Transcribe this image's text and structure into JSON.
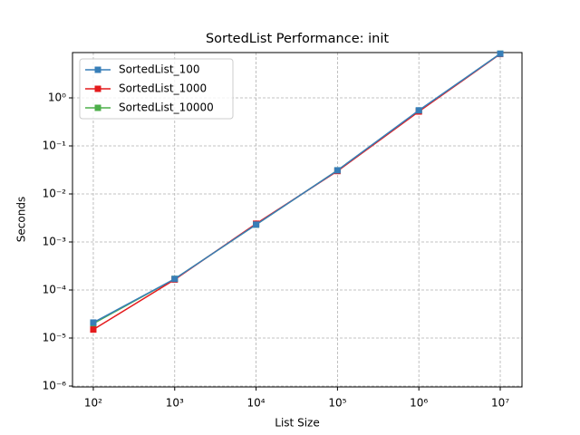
{
  "chart_data": {
    "type": "line",
    "title": "SortedList Performance: init",
    "xlabel": "List Size",
    "ylabel": "Seconds",
    "x": [
      100,
      1000,
      10000,
      100000,
      1000000,
      10000000
    ],
    "series": [
      {
        "name": "SortedList_100",
        "color": "#377eb8",
        "values": [
          2.1e-05,
          0.00017,
          0.0023,
          0.031,
          0.55,
          8.3
        ]
      },
      {
        "name": "SortedList_1000",
        "color": "#e41a1c",
        "values": [
          1.5e-05,
          0.000165,
          0.0024,
          0.03,
          0.52,
          8.2
        ]
      },
      {
        "name": "SortedList_10000",
        "color": "#4daf4a",
        "values": [
          2e-05,
          0.00017,
          0.0023,
          0.031,
          0.54,
          8.3
        ]
      }
    ],
    "xscale": "log",
    "yscale": "log",
    "xlim": [
      55.5,
      18500000
    ],
    "ylim": [
      9.57e-07,
      8.78
    ],
    "xticks": [
      {
        "value": 100,
        "label": "10²"
      },
      {
        "value": 1000,
        "label": "10³"
      },
      {
        "value": 10000,
        "label": "10⁴"
      },
      {
        "value": 100000,
        "label": "10⁵"
      },
      {
        "value": 1000000,
        "label": "10⁶"
      },
      {
        "value": 10000000,
        "label": "10⁷"
      }
    ],
    "yticks": [
      {
        "value": 1e-06,
        "label": "10⁻⁶"
      },
      {
        "value": 1e-05,
        "label": "10⁻⁵"
      },
      {
        "value": 0.0001,
        "label": "10⁻⁴"
      },
      {
        "value": 0.001,
        "label": "10⁻³"
      },
      {
        "value": 0.01,
        "label": "10⁻²"
      },
      {
        "value": 0.1,
        "label": "10⁻¹"
      },
      {
        "value": 1,
        "label": "10⁰"
      }
    ],
    "grid": true,
    "legend": "upper left"
  }
}
